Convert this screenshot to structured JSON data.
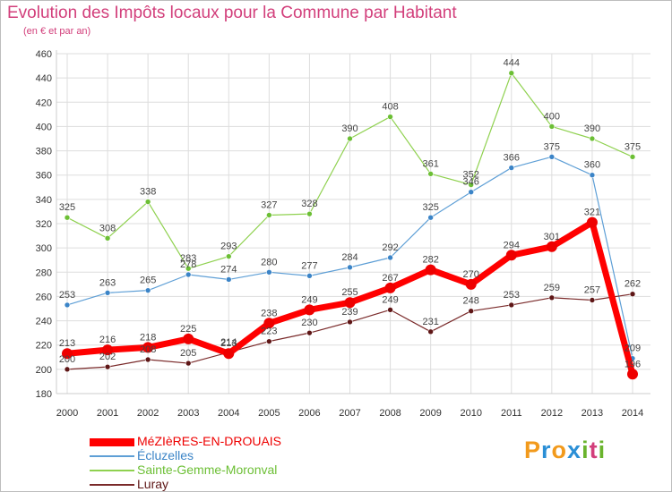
{
  "title": "Evolution des Impôts locaux pour la Commune par Habitant",
  "subtitle": "(en € et par an)",
  "logo": {
    "chars": [
      "P",
      "r",
      "o",
      "x",
      "i",
      "t",
      "i"
    ],
    "colors": [
      "#f29a1c",
      "#2b8fd6",
      "#f29a1c",
      "#2b8fd6",
      "#6ab42d",
      "#d23f7b",
      "#6ab42d"
    ]
  },
  "colors": {
    "grid": "#dddddd",
    "axis": "#cccccc",
    "tick_text": "#333333",
    "value_text": "#444444",
    "title": "#d23f7b"
  },
  "chart_data": {
    "type": "line",
    "title": "Evolution des Impôts locaux pour la Commune par Habitant",
    "subtitle": "(en € et par an)",
    "xlabel": "",
    "ylabel": "",
    "x": [
      2000,
      2001,
      2002,
      2003,
      2004,
      2005,
      2006,
      2007,
      2008,
      2009,
      2010,
      2011,
      2012,
      2013,
      2014
    ],
    "ylim": [
      180,
      460
    ],
    "yticks": [
      180,
      200,
      220,
      240,
      260,
      280,
      300,
      320,
      340,
      360,
      380,
      400,
      420,
      440,
      460
    ],
    "grid": true,
    "legend": "bottom-left",
    "series": [
      {
        "name": "Sainte-Gemme-Moronval",
        "color": "#8fd14f",
        "point_color": "#6cbf35",
        "width": 1.2,
        "marker": 3,
        "values": [
          325,
          308,
          338,
          283,
          293,
          327,
          328,
          390,
          408,
          361,
          352,
          444,
          400,
          390,
          375
        ]
      },
      {
        "name": "Écluzelles",
        "color": "#5e9fd6",
        "point_color": "#3b84c7",
        "width": 1.2,
        "marker": 3,
        "values": [
          253,
          263,
          265,
          278,
          274,
          280,
          277,
          284,
          292,
          325,
          346,
          366,
          375,
          360,
          209
        ]
      },
      {
        "name": "Luray",
        "color": "#7a2a2a",
        "point_color": "#5e1616",
        "width": 1.2,
        "marker": 3,
        "values": [
          200,
          202,
          208,
          205,
          214,
          223,
          230,
          239,
          249,
          231,
          248,
          253,
          259,
          257,
          262
        ]
      },
      {
        "name": "MéZIèRES-EN-DROUAIS",
        "color": "#ff0000",
        "point_color": "#ee0000",
        "width": 7,
        "marker": 6,
        "values": [
          213,
          216,
          218,
          225,
          213,
          238,
          249,
          255,
          267,
          282,
          270,
          294,
          301,
          321,
          196
        ]
      }
    ],
    "legend_order": [
      "MéZIèRES-EN-DROUAIS",
      "Écluzelles",
      "Sainte-Gemme-Moronval",
      "Luray"
    ]
  }
}
